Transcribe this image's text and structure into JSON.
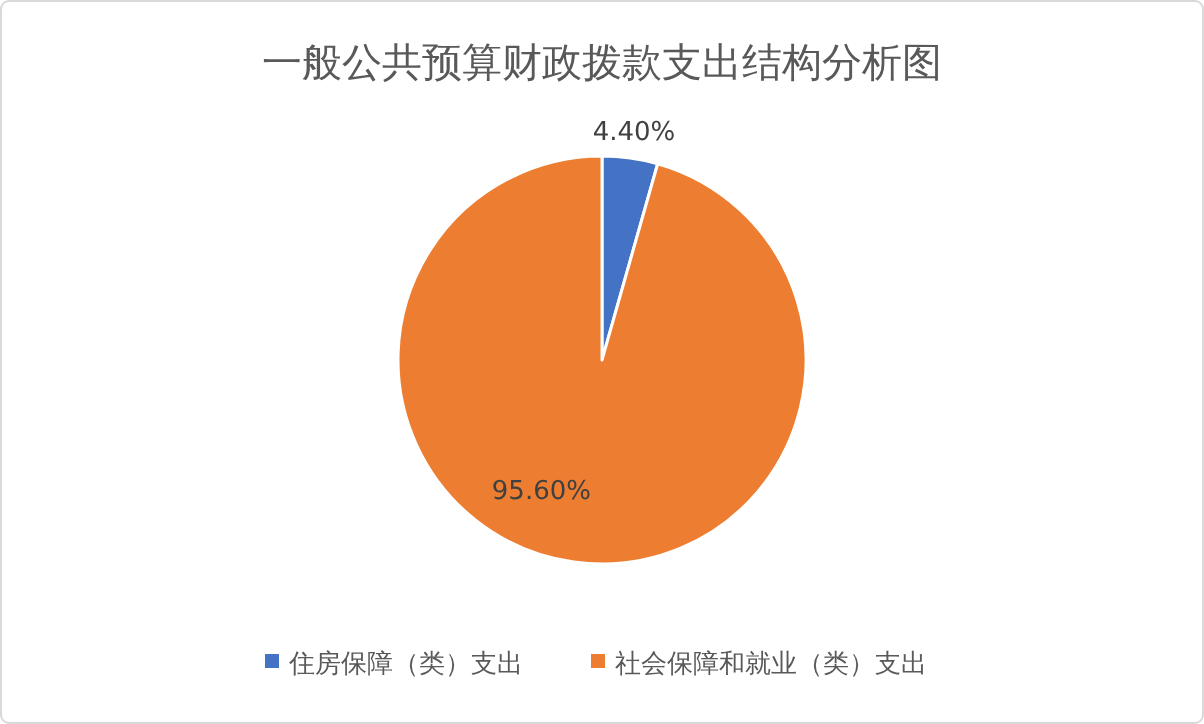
{
  "chart_data": {
    "type": "pie",
    "title": "一般公共预算财政拨款支出结构分析图",
    "categories": [
      "住房保障（类）支出",
      "社会保障和就业（类）支出"
    ],
    "values": [
      4.4,
      95.6
    ],
    "colors": [
      "#4472c4",
      "#ed7d31"
    ],
    "value_labels": [
      "4.40%",
      "95.60%"
    ],
    "legend": "bottom"
  }
}
